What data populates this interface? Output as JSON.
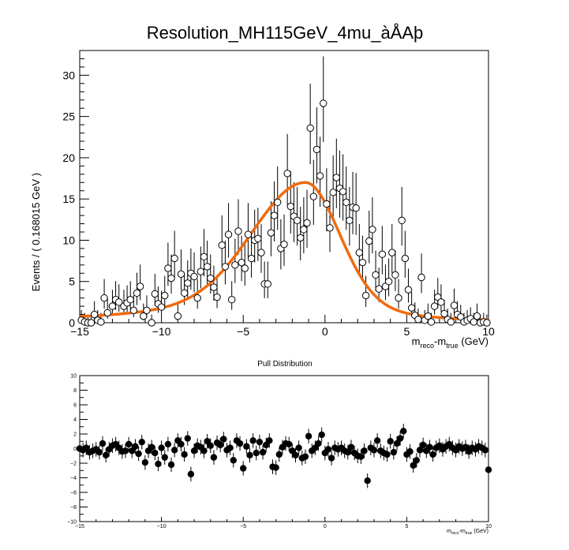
{
  "chart_data": [
    {
      "type": "scatter",
      "panel": "main",
      "title": "Resolution_MH115GeV_4mu_àÅAþ",
      "xlabel": {
        "base": "m",
        "sub1": "reco",
        "mid": "-m",
        "sub2": "true",
        "tail": " (GeV)"
      },
      "ylabel": "Events / ( 0.168015 GeV )",
      "xlim": [
        -15,
        10
      ],
      "ylim": [
        0,
        33
      ],
      "xticks": [
        -15,
        -10,
        -5,
        0,
        5,
        10
      ],
      "yticks": [
        0,
        5,
        10,
        15,
        20,
        25,
        30
      ],
      "x_tick_labels": [
        "−15",
        "−10",
        "−5",
        "0",
        "5",
        "10"
      ],
      "y_tick_labels": [
        "0",
        "5",
        "10",
        "15",
        "20",
        "25",
        "30"
      ],
      "grid": false,
      "colors": {
        "fit": "#f06a0f",
        "points": "#000000",
        "marker_fill": "#ffffff"
      },
      "fit_curve": {
        "name": "",
        "peak_x": -1.2,
        "peak_y": 17.0
      },
      "points": [
        [
          -14.9,
          0.3
        ],
        [
          -14.7,
          0.1
        ],
        [
          -14.5,
          0.0
        ],
        [
          -14.3,
          0.0
        ],
        [
          -14.1,
          1.0
        ],
        [
          -13.9,
          0.3
        ],
        [
          -13.7,
          0.1
        ],
        [
          -13.5,
          3.0
        ],
        [
          -13.3,
          1.2
        ],
        [
          -13.0,
          2.0
        ],
        [
          -12.8,
          2.8
        ],
        [
          -12.6,
          2.5
        ],
        [
          -12.3,
          2.0
        ],
        [
          -12.1,
          2.4
        ],
        [
          -11.9,
          2.8
        ],
        [
          -11.7,
          1.5
        ],
        [
          -11.5,
          3.6
        ],
        [
          -11.3,
          4.4
        ],
        [
          -11.1,
          0.8
        ],
        [
          -10.9,
          1.5
        ],
        [
          -10.6,
          0.0
        ],
        [
          -10.4,
          3.5
        ],
        [
          -10.2,
          2.3
        ],
        [
          -10.0,
          1.9
        ],
        [
          -9.8,
          3.3
        ],
        [
          -9.6,
          6.6
        ],
        [
          -9.4,
          5.4
        ],
        [
          -9.2,
          7.8
        ],
        [
          -9.0,
          0.8
        ],
        [
          -8.8,
          5.9
        ],
        [
          -8.6,
          3.6
        ],
        [
          -8.4,
          4.8
        ],
        [
          -8.2,
          6.0
        ],
        [
          -8.0,
          5.6
        ],
        [
          -7.8,
          3.0
        ],
        [
          -7.6,
          6.2
        ],
        [
          -7.4,
          8.0
        ],
        [
          -7.2,
          6.8
        ],
        [
          -7.0,
          5.4
        ],
        [
          -6.8,
          4.3
        ],
        [
          -6.6,
          3.1
        ],
        [
          -6.3,
          9.4
        ],
        [
          -6.1,
          6.8
        ],
        [
          -5.9,
          10.7
        ],
        [
          -5.7,
          2.8
        ],
        [
          -5.5,
          7.0
        ],
        [
          -5.3,
          11.1
        ],
        [
          -5.1,
          7.3
        ],
        [
          -4.9,
          6.6
        ],
        [
          -4.7,
          10.7
        ],
        [
          -4.5,
          7.8
        ],
        [
          -4.3,
          10.0
        ],
        [
          -4.1,
          10.2
        ],
        [
          -3.9,
          8.5
        ],
        [
          -3.7,
          4.7
        ],
        [
          -3.5,
          4.7
        ],
        [
          -3.3,
          10.9
        ],
        [
          -3.1,
          13.0
        ],
        [
          -2.9,
          14.6
        ],
        [
          -2.7,
          9.0
        ],
        [
          -2.5,
          9.5
        ],
        [
          -2.3,
          18.1
        ],
        [
          -2.1,
          14.1
        ],
        [
          -1.9,
          12.9
        ],
        [
          -1.7,
          12.4
        ],
        [
          -1.5,
          10.3
        ],
        [
          -1.3,
          11.3
        ],
        [
          -1.1,
          12.1
        ],
        [
          -0.9,
          23.6
        ],
        [
          -0.7,
          15.3
        ],
        [
          -0.5,
          21.0
        ],
        [
          -0.3,
          17.8
        ],
        [
          -0.1,
          26.6
        ],
        [
          0.1,
          14.4
        ],
        [
          0.3,
          11.5
        ],
        [
          0.5,
          15.8
        ],
        [
          0.7,
          17.6
        ],
        [
          0.9,
          16.3
        ],
        [
          1.1,
          15.9
        ],
        [
          1.3,
          14.6
        ],
        [
          1.5,
          12.4
        ],
        [
          1.7,
          14.0
        ],
        [
          1.9,
          13.9
        ],
        [
          2.1,
          8.5
        ],
        [
          2.3,
          7.3
        ],
        [
          2.5,
          3.3
        ],
        [
          2.7,
          9.9
        ],
        [
          2.9,
          11.3
        ],
        [
          3.1,
          5.8
        ],
        [
          3.3,
          4.1
        ],
        [
          3.5,
          8.3
        ],
        [
          3.7,
          4.4
        ],
        [
          3.9,
          5.0
        ],
        [
          4.1,
          8.5
        ],
        [
          4.3,
          5.8
        ],
        [
          4.5,
          3.0
        ],
        [
          4.7,
          12.4
        ],
        [
          4.9,
          7.8
        ],
        [
          5.1,
          4.0
        ],
        [
          5.3,
          1.8
        ],
        [
          5.5,
          0.9
        ],
        [
          5.7,
          0.4
        ],
        [
          5.9,
          5.5
        ],
        [
          6.1,
          0.3
        ],
        [
          6.3,
          0.8
        ],
        [
          6.5,
          0.1
        ],
        [
          6.7,
          2.0
        ],
        [
          6.9,
          3.1
        ],
        [
          7.1,
          2.5
        ],
        [
          7.3,
          1.1
        ],
        [
          7.5,
          0.4
        ],
        [
          7.7,
          0.1
        ],
        [
          7.9,
          2.1
        ],
        [
          8.1,
          1.0
        ],
        [
          8.3,
          0.7
        ],
        [
          8.5,
          0.1
        ],
        [
          8.7,
          0.3
        ],
        [
          8.9,
          0.5
        ],
        [
          9.1,
          0.1
        ],
        [
          9.3,
          0.8
        ],
        [
          9.5,
          0.0
        ],
        [
          9.7,
          0.1
        ],
        [
          9.9,
          0.0
        ]
      ]
    },
    {
      "type": "scatter",
      "panel": "pull",
      "title": "Pull Distribution",
      "xlabel": {
        "base": "m",
        "sub1": "reco",
        "mid": "-m",
        "sub2": "true",
        "tail": " (GeV)"
      },
      "ylabel": "",
      "xlim": [
        -15,
        10
      ],
      "ylim": [
        -10,
        10
      ],
      "xticks": [
        -15,
        -10,
        -5,
        0,
        5,
        10
      ],
      "yticks": [
        -10,
        -8,
        -6,
        -4,
        -2,
        0,
        2,
        4,
        6,
        8,
        10
      ],
      "x_tick_labels": [
        "−15",
        "−10",
        "−5",
        "0",
        "5",
        "10"
      ],
      "y_tick_labels": [
        "−10",
        "−8",
        "−6",
        "−4",
        "−2",
        "0",
        "2",
        "4",
        "6",
        "8",
        "10"
      ],
      "grid": false,
      "points": [
        [
          -15.0,
          0.0
        ],
        [
          -14.8,
          -0.2
        ],
        [
          -14.6,
          0.1
        ],
        [
          -14.4,
          -0.5
        ],
        [
          -14.2,
          -0.3
        ],
        [
          -14.0,
          -0.1
        ],
        [
          -13.8,
          -0.5
        ],
        [
          -13.6,
          0.7
        ],
        [
          -13.4,
          -0.9
        ],
        [
          -13.2,
          -0.1
        ],
        [
          -13.0,
          0.4
        ],
        [
          -12.8,
          0.6
        ],
        [
          -12.6,
          0.1
        ],
        [
          -12.4,
          -0.4
        ],
        [
          -12.2,
          -0.3
        ],
        [
          -12.0,
          0.6
        ],
        [
          -11.8,
          -0.3
        ],
        [
          -11.6,
          0.3
        ],
        [
          -11.4,
          -0.7
        ],
        [
          -11.2,
          0.9
        ],
        [
          -11.0,
          -1.9
        ],
        [
          -10.8,
          -0.3
        ],
        [
          -10.6,
          0.2
        ],
        [
          -10.4,
          -0.6
        ],
        [
          -10.2,
          -2.1
        ],
        [
          -10.0,
          0.1
        ],
        [
          -9.8,
          -1.2
        ],
        [
          -9.6,
          0.6
        ],
        [
          -9.4,
          -2.2
        ],
        [
          -9.2,
          -0.2
        ],
        [
          -9.0,
          1.1
        ],
        [
          -8.8,
          0.6
        ],
        [
          -8.6,
          -0.8
        ],
        [
          -8.4,
          1.4
        ],
        [
          -8.2,
          -3.5
        ],
        [
          -8.0,
          -0.3
        ],
        [
          -7.8,
          0.4
        ],
        [
          -7.6,
          0.2
        ],
        [
          -7.4,
          -0.3
        ],
        [
          -7.2,
          1.0
        ],
        [
          -7.0,
          0.4
        ],
        [
          -6.8,
          -1.2
        ],
        [
          -6.6,
          0.8
        ],
        [
          -6.4,
          0.5
        ],
        [
          -6.2,
          1.3
        ],
        [
          -6.0,
          -0.2
        ],
        [
          -5.8,
          0.1
        ],
        [
          -5.6,
          -1.6
        ],
        [
          -5.4,
          1.1
        ],
        [
          -5.2,
          0.7
        ],
        [
          -5.0,
          -2.7
        ],
        [
          -4.8,
          0.3
        ],
        [
          -4.6,
          -0.9
        ],
        [
          -4.4,
          1.1
        ],
        [
          -4.2,
          -0.6
        ],
        [
          -4.0,
          0.9
        ],
        [
          -3.8,
          -0.5
        ],
        [
          -3.6,
          0.5
        ],
        [
          -3.4,
          1.1
        ],
        [
          -3.2,
          -2.5
        ],
        [
          -3.0,
          -2.6
        ],
        [
          -2.8,
          -0.8
        ],
        [
          -2.6,
          0.2
        ],
        [
          -2.4,
          0.7
        ],
        [
          -2.2,
          0.6
        ],
        [
          -2.0,
          -0.3
        ],
        [
          -1.8,
          -0.9
        ],
        [
          -1.6,
          0.1
        ],
        [
          -1.4,
          -1.3
        ],
        [
          -1.2,
          -1.1
        ],
        [
          -1.0,
          1.7
        ],
        [
          -0.8,
          -0.3
        ],
        [
          -0.6,
          0.1
        ],
        [
          -0.4,
          0.7
        ],
        [
          -0.2,
          1.9
        ],
        [
          0.0,
          -0.6
        ],
        [
          0.2,
          -0.1
        ],
        [
          0.4,
          -1.3
        ],
        [
          0.6,
          0.1
        ],
        [
          0.8,
          -0.1
        ],
        [
          1.0,
          0.1
        ],
        [
          1.2,
          -0.3
        ],
        [
          1.4,
          -0.5
        ],
        [
          1.6,
          0.2
        ],
        [
          1.8,
          -0.6
        ],
        [
          2.0,
          -1.0
        ],
        [
          2.2,
          -1.1
        ],
        [
          2.4,
          -0.3
        ],
        [
          2.6,
          -4.4
        ],
        [
          2.8,
          0.1
        ],
        [
          3.0,
          -0.2
        ],
        [
          3.2,
          1.1
        ],
        [
          3.4,
          -0.3
        ],
        [
          3.6,
          -0.6
        ],
        [
          3.8,
          -0.8
        ],
        [
          4.0,
          1.0
        ],
        [
          4.2,
          -0.5
        ],
        [
          4.4,
          0.7
        ],
        [
          4.6,
          1.4
        ],
        [
          4.8,
          2.4
        ],
        [
          5.0,
          -0.8
        ],
        [
          5.2,
          -0.4
        ],
        [
          5.4,
          -2.3
        ],
        [
          5.6,
          -1.6
        ],
        [
          5.8,
          -0.2
        ],
        [
          6.0,
          0.5
        ],
        [
          6.2,
          -0.3
        ],
        [
          6.4,
          0.2
        ],
        [
          6.6,
          -0.8
        ],
        [
          6.8,
          0.1
        ],
        [
          7.0,
          0.4
        ],
        [
          7.2,
          -0.1
        ],
        [
          7.4,
          0.3
        ],
        [
          7.6,
          0.6
        ],
        [
          7.8,
          0.1
        ],
        [
          8.0,
          -0.2
        ],
        [
          8.2,
          0.3
        ],
        [
          8.4,
          0.0
        ],
        [
          8.6,
          0.2
        ],
        [
          8.8,
          -0.4
        ],
        [
          9.0,
          0.1
        ],
        [
          9.2,
          -0.1
        ],
        [
          9.4,
          0.3
        ],
        [
          9.6,
          0.1
        ],
        [
          9.8,
          -0.2
        ],
        [
          10.0,
          -2.9
        ]
      ]
    }
  ]
}
